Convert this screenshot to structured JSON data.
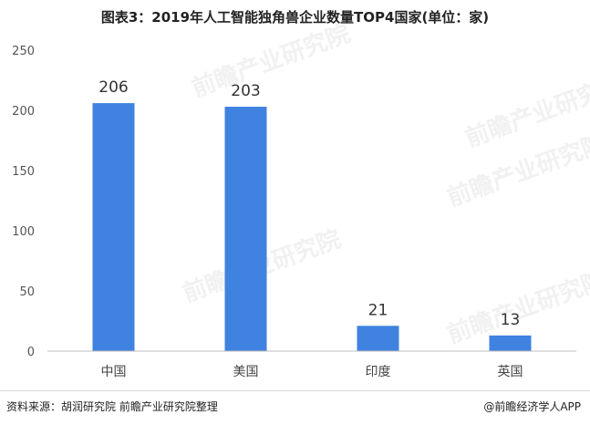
{
  "chart_data": {
    "type": "bar",
    "title": "图表3：2019年人工智能独角兽企业数量TOP4国家(单位：家)",
    "categories": [
      "中国",
      "美国",
      "印度",
      "英国"
    ],
    "values": [
      206,
      203,
      21,
      13
    ],
    "ylim": [
      0,
      250
    ],
    "yticks": [
      0,
      50,
      100,
      150,
      200,
      250
    ],
    "grid": false,
    "legend": "none",
    "bar_color": "#3f82e0",
    "xlabel": "",
    "ylabel": ""
  },
  "footer": {
    "source": "资料来源：胡润研究院 前瞻产业研究院整理",
    "brand": "@前瞻经济学人APP"
  },
  "watermark": {
    "text": "前瞻产业研究院"
  }
}
